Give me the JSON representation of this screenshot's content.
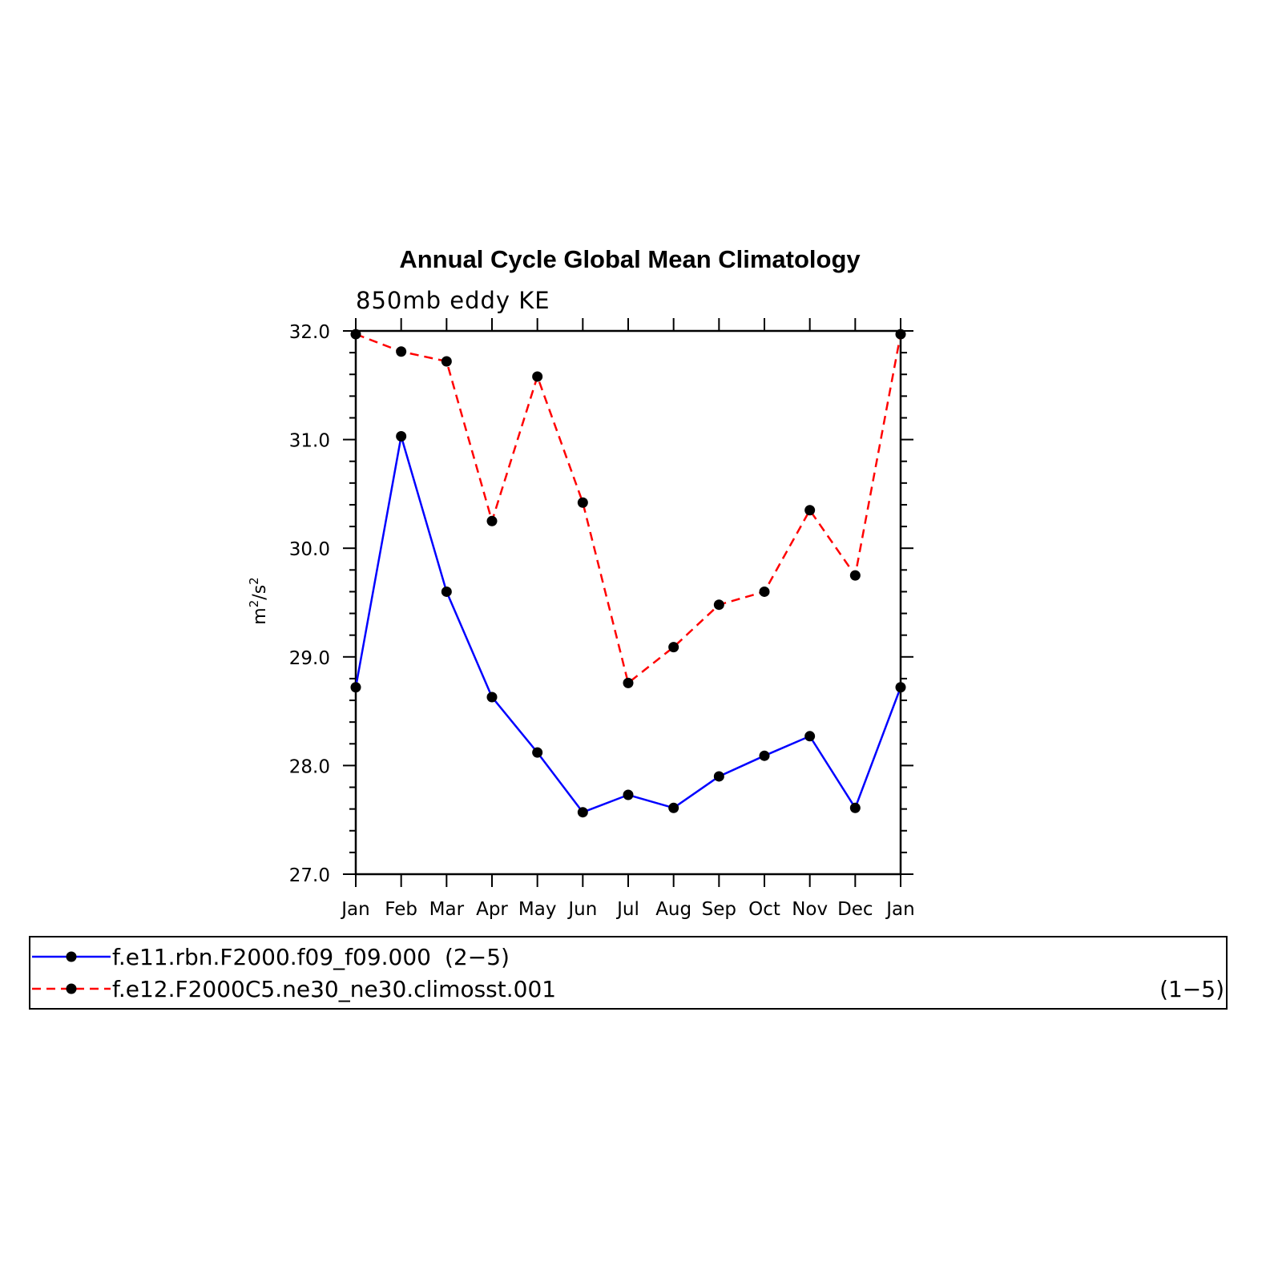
{
  "chart_data": {
    "type": "line",
    "title": "Annual Cycle Global Mean Climatology",
    "subtitle": "850mb eddy KE",
    "ylabel": "m²/s²",
    "ylabel_parts": {
      "base1": "m",
      "sup1": "2",
      "mid": "/s",
      "sup2": "2"
    },
    "xlabel": "",
    "categories": [
      "Jan",
      "Feb",
      "Mar",
      "Apr",
      "May",
      "Jun",
      "Jul",
      "Aug",
      "Sep",
      "Oct",
      "Nov",
      "Dec",
      "Jan"
    ],
    "ylim": [
      27.0,
      32.0
    ],
    "yticks": [
      27.0,
      28.0,
      29.0,
      30.0,
      31.0,
      32.0
    ],
    "ytick_labels": [
      "27.0",
      "28.0",
      "29.0",
      "30.0",
      "31.0",
      "32.0"
    ],
    "grid": false,
    "legend_position": "bottom",
    "series": [
      {
        "name": "f.e11.rbn.F2000.f09_f09.000",
        "legend_suffix": "(2−5)",
        "color": "#0000ff",
        "dash": "solid",
        "values": [
          28.72,
          31.03,
          29.6,
          28.63,
          28.12,
          27.57,
          27.73,
          27.61,
          27.9,
          28.09,
          28.27,
          27.61,
          28.72
        ]
      },
      {
        "name": "f.e12.F2000C5.ne30_ne30.climosst.001",
        "legend_suffix": "(1−5)",
        "color": "#ff0000",
        "dash": "dashed",
        "values": [
          31.97,
          31.81,
          31.72,
          30.25,
          31.58,
          30.42,
          28.76,
          29.09,
          29.48,
          29.6,
          30.35,
          29.75,
          31.97
        ]
      }
    ],
    "marker_color": "#000000"
  }
}
